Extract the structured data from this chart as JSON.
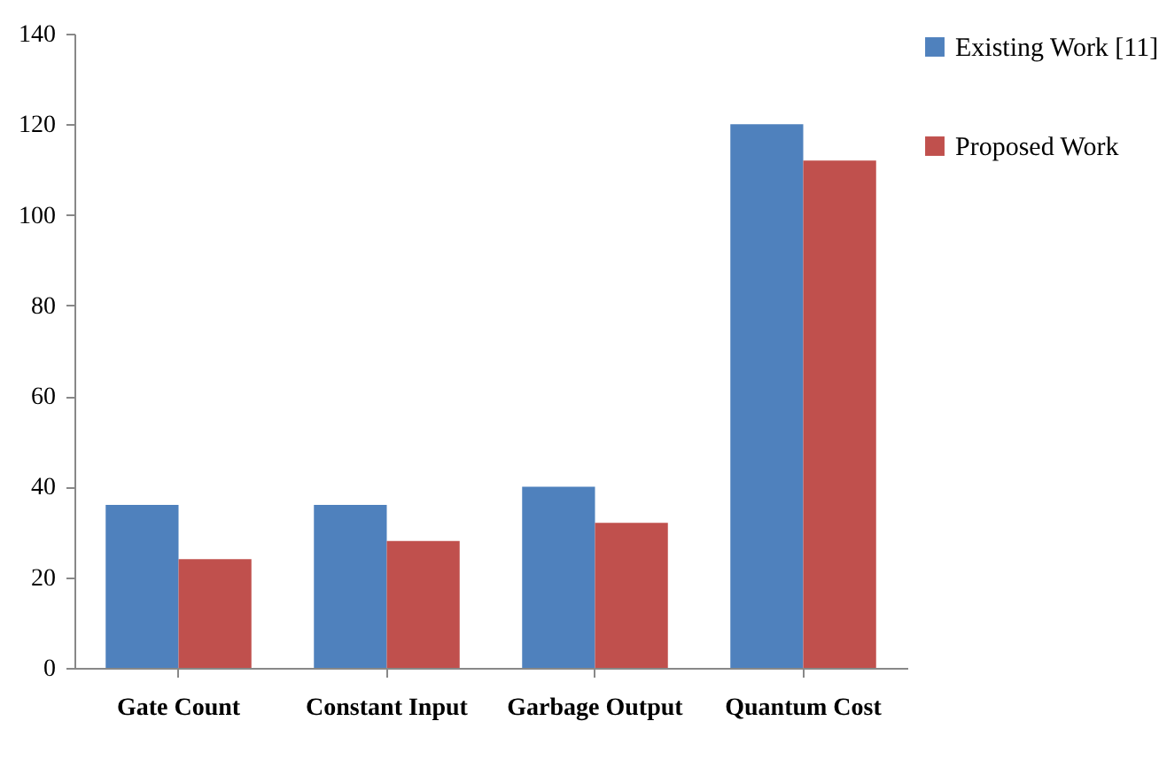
{
  "chart_data": {
    "type": "bar",
    "categories": [
      "Gate Count",
      "Constant Input",
      "Garbage Output",
      "Quantum Cost"
    ],
    "series": [
      {
        "name": "Existing Work [11]",
        "color": "#4f81bd",
        "values": [
          36,
          36,
          40,
          120
        ]
      },
      {
        "name": "Proposed Work",
        "color": "#c0504d",
        "values": [
          24,
          28,
          32,
          112
        ]
      }
    ],
    "ylim": [
      0,
      140
    ],
    "yticks": [
      0,
      20,
      40,
      60,
      80,
      100,
      120,
      140
    ],
    "grid": false,
    "legend": "top right"
  }
}
